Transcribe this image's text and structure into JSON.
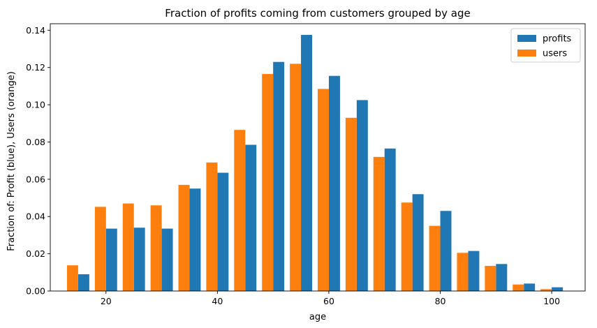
{
  "chart_data": {
    "type": "bar",
    "title": "Fraction of profits coming from customers grouped by age",
    "xlabel": "age",
    "ylabel": "Fraction of: Profit (blue), Users (orange)",
    "xlim": [
      10,
      106
    ],
    "ylim": [
      0,
      0.1435
    ],
    "xticks": [
      20,
      40,
      60,
      80,
      100
    ],
    "yticks": [
      0.0,
      0.02,
      0.04,
      0.06,
      0.08,
      0.1,
      0.12,
      0.14
    ],
    "xtick_labels": [
      "20",
      "40",
      "60",
      "80",
      "100"
    ],
    "ytick_labels": [
      "0.00",
      "0.02",
      "0.04",
      "0.06",
      "0.08",
      "0.10",
      "0.12",
      "0.14"
    ],
    "categories": [
      15,
      20,
      25,
      30,
      35,
      40,
      45,
      50,
      55,
      60,
      65,
      70,
      75,
      80,
      85,
      90,
      95,
      100
    ],
    "bar_width": 2,
    "series": [
      {
        "name": "profits",
        "color": "#1f77b4",
        "x": [
          16,
          21,
          26,
          31,
          36,
          41,
          46,
          51,
          56,
          61,
          66,
          71,
          76,
          81,
          86,
          91,
          96,
          101
        ],
        "values": [
          0.009,
          0.0335,
          0.034,
          0.0335,
          0.055,
          0.0635,
          0.0785,
          0.123,
          0.1375,
          0.1155,
          0.1025,
          0.0765,
          0.052,
          0.043,
          0.0215,
          0.0145,
          0.004,
          0.002
        ]
      },
      {
        "name": "users",
        "color": "#ff7f0e",
        "x": [
          14,
          19,
          24,
          29,
          34,
          39,
          44,
          49,
          54,
          59,
          64,
          69,
          74,
          79,
          84,
          89,
          94,
          99
        ],
        "values": [
          0.0138,
          0.0452,
          0.047,
          0.046,
          0.057,
          0.069,
          0.0865,
          0.1165,
          0.122,
          0.1085,
          0.093,
          0.072,
          0.0475,
          0.035,
          0.0205,
          0.0135,
          0.0035,
          0.001
        ]
      }
    ],
    "legend": {
      "placement": "top-right",
      "entries": [
        "profits",
        "users"
      ]
    },
    "grid": false
  }
}
